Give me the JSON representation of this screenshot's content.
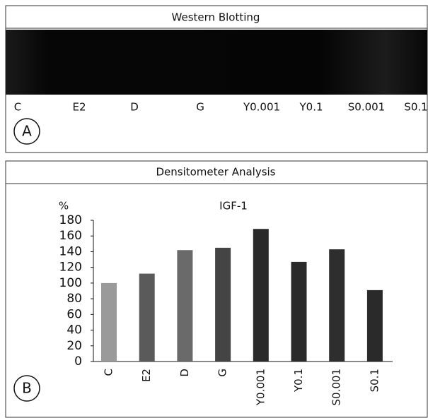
{
  "blot": {
    "title": "Western Blotting",
    "panel_label": "A",
    "lanes": [
      "C",
      "E2",
      "D",
      "G",
      "Y0.001",
      "Y0.1",
      "S0.001",
      "S0.1"
    ]
  },
  "chart_data": {
    "type": "bar",
    "title": "Densitometer Analysis",
    "panel_label": "B",
    "subtitle": "IGF-1",
    "y_label": "%",
    "categories": [
      "C",
      "E2",
      "D",
      "G",
      "Y0.001",
      "Y0.1",
      "S0.001",
      "S0.1"
    ],
    "values": [
      100,
      112,
      142,
      145,
      169,
      127,
      143,
      91
    ],
    "colors": [
      "#9a9a9a",
      "#5a5a5a",
      "#6a6a6a",
      "#444444",
      "#2a2a2a",
      "#2a2a2a",
      "#2e2e2e",
      "#2a2a2a"
    ],
    "ylim": [
      0,
      180
    ],
    "yticks": [
      0,
      20,
      40,
      60,
      80,
      100,
      120,
      140,
      160,
      180
    ],
    "grid": false
  }
}
